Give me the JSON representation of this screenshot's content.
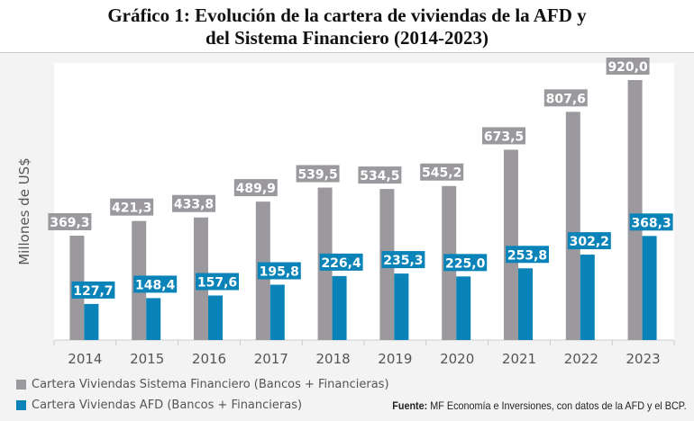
{
  "chart_data": {
    "type": "bar",
    "title": "Gráfico 1: Evolución de la cartera de viviendas de la AFD y",
    "title_line2": "del Sistema Financiero (2014-2023)",
    "ylabel": "Millones de US$",
    "xlabel": "",
    "categories": [
      "2014",
      "2015",
      "2016",
      "2017",
      "2018",
      "2019",
      "2020",
      "2021",
      "2022",
      "2023"
    ],
    "series": [
      {
        "name": "Cartera Viviendas Sistema Financiero (Bancos + Financieras)",
        "color": "#9b999e",
        "values": [
          369.3,
          421.3,
          433.8,
          489.9,
          539.5,
          534.5,
          545.2,
          673.5,
          807.6,
          920.0
        ],
        "labels": [
          "369,3",
          "421,3",
          "433,8",
          "489,9",
          "539,5",
          "534,5",
          "545,2",
          "673,5",
          "807,6",
          "920,0"
        ]
      },
      {
        "name": "Cartera Viviendas AFD (Bancos + Financieras)",
        "color": "#0a83b8",
        "values": [
          127.7,
          148.4,
          157.6,
          195.8,
          226.4,
          235.3,
          225.0,
          253.8,
          302.2,
          368.3
        ],
        "labels": [
          "127,7",
          "148,4",
          "157,6",
          "195,8",
          "226,4",
          "235,3",
          "225,0",
          "253,8",
          "302,2",
          "368,3"
        ]
      }
    ],
    "ylim": [
      0,
      920
    ],
    "grid": false,
    "legend": "bottom-left"
  },
  "source": {
    "label": "Fuente:",
    "text": " MF Economía e Inversiones, con datos de la AFD y el BCP."
  }
}
